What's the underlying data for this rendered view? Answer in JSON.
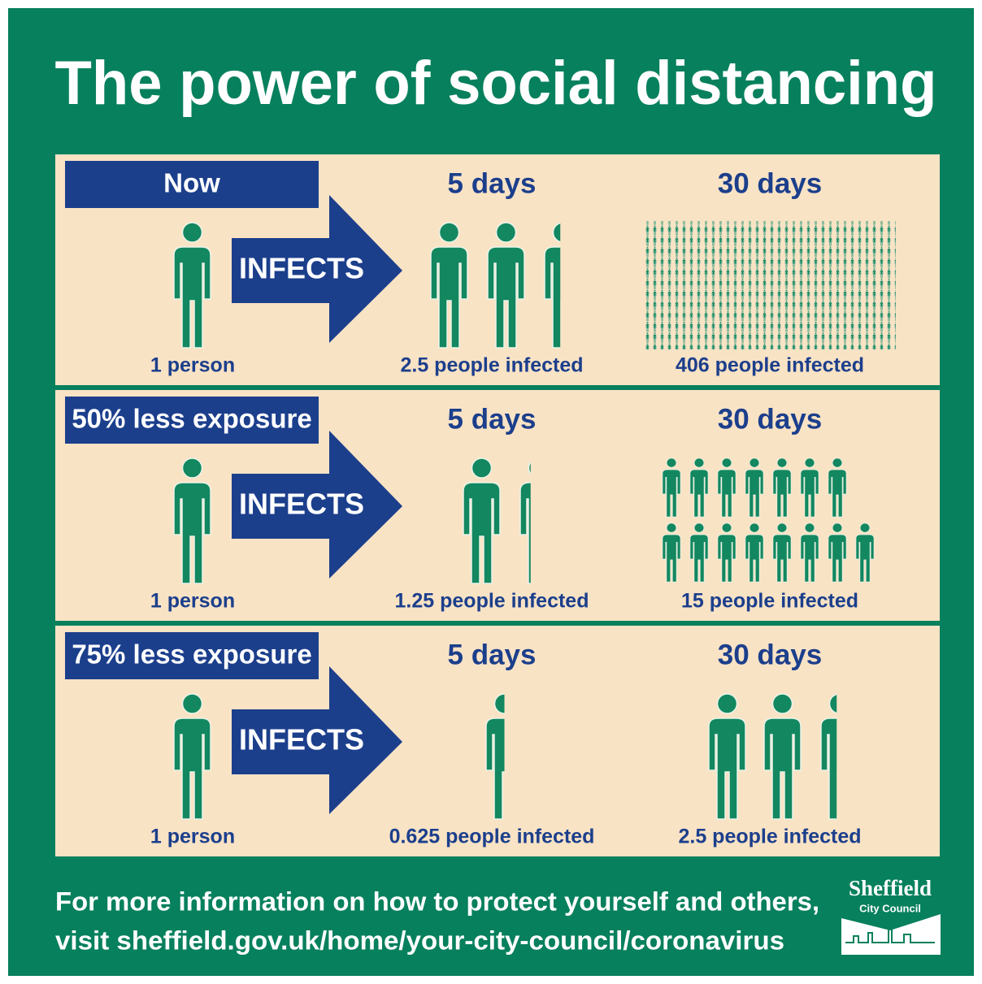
{
  "title": "The power of social distancing",
  "rows": [
    {
      "label": "Now",
      "infects": "INFECTS",
      "person": "1 person",
      "five_days": {
        "heading": "5 days",
        "caption": "2.5 people infected"
      },
      "thirty_days": {
        "heading": "30 days",
        "caption": "406 people infected"
      }
    },
    {
      "label": "50% less exposure",
      "infects": "INFECTS",
      "person": "1 person",
      "five_days": {
        "heading": "5 days",
        "caption": "1.25 people infected"
      },
      "thirty_days": {
        "heading": "30 days",
        "caption": "15 people infected"
      }
    },
    {
      "label": "75% less exposure",
      "infects": "INFECTS",
      "person": "1 person",
      "five_days": {
        "heading": "5 days",
        "caption": "0.625 people infected"
      },
      "thirty_days": {
        "heading": "30 days",
        "caption": "2.5 people infected"
      }
    }
  ],
  "footer": {
    "lines": [
      "For more information on how to protect yourself and others,",
      "visit sheffield.gov.uk/home/your-city-council/coronavirus"
    ]
  },
  "logo": {
    "name": "Sheffield",
    "subtitle": "City Council"
  }
}
